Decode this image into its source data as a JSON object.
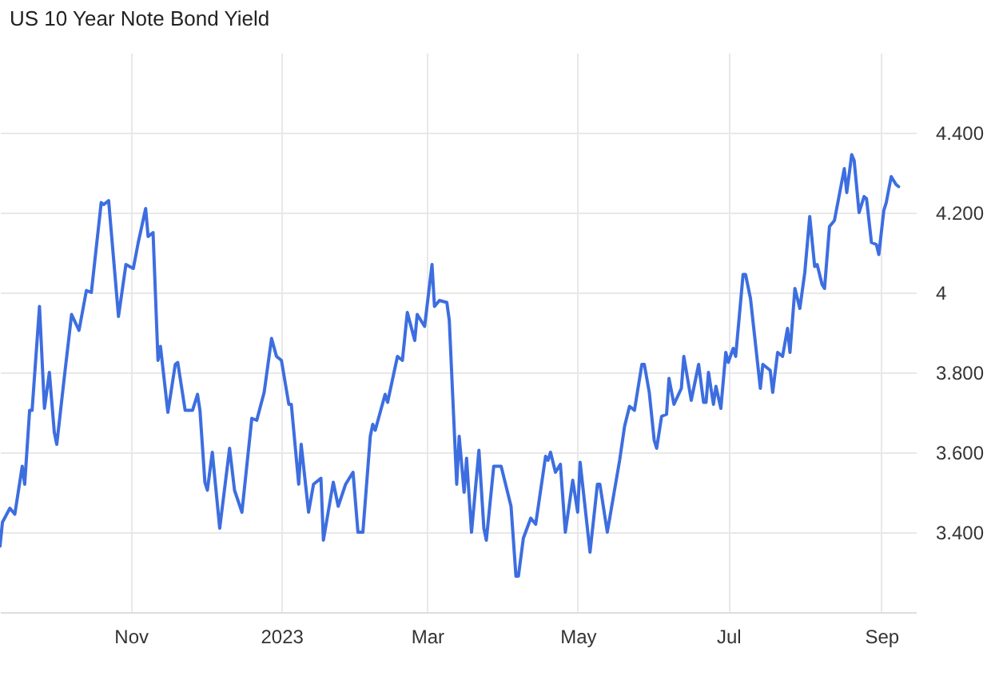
{
  "chart_data": {
    "type": "line",
    "title": "US 10 Year Note Bond Yield",
    "x": [
      "2022-09-09",
      "2022-09-10",
      "2022-09-13",
      "2022-09-15",
      "2022-09-18",
      "2022-09-19",
      "2022-09-21",
      "2022-09-22",
      "2022-09-25",
      "2022-09-27",
      "2022-09-29",
      "2022-10-01",
      "2022-10-02",
      "2022-10-05",
      "2022-10-08",
      "2022-10-11",
      "2022-10-14",
      "2022-10-16",
      "2022-10-20",
      "2022-10-21",
      "2022-10-23",
      "2022-10-27",
      "2022-10-30",
      "2022-11-02",
      "2022-11-04",
      "2022-11-07",
      "2022-11-08",
      "2022-11-10",
      "2022-11-12",
      "2022-11-13",
      "2022-11-16",
      "2022-11-19",
      "2022-11-20",
      "2022-11-23",
      "2022-11-26",
      "2022-11-28",
      "2022-11-29",
      "2022-12-01",
      "2022-12-02",
      "2022-12-04",
      "2022-12-07",
      "2022-12-11",
      "2022-12-13",
      "2022-12-16",
      "2022-12-20",
      "2022-12-22",
      "2022-12-25",
      "2022-12-28",
      "2022-12-30",
      "2023-01-01",
      "2023-01-04",
      "2023-01-05",
      "2023-01-08",
      "2023-01-09",
      "2023-01-12",
      "2023-01-14",
      "2023-01-17",
      "2023-01-18",
      "2023-01-22",
      "2023-01-24",
      "2023-01-27",
      "2023-01-30",
      "2023-02-01",
      "2023-02-03",
      "2023-02-06",
      "2023-02-07",
      "2023-02-08",
      "2023-02-12",
      "2023-02-13",
      "2023-02-17",
      "2023-02-19",
      "2023-02-21",
      "2023-02-24",
      "2023-02-25",
      "2023-02-28",
      "2023-03-03",
      "2023-03-04",
      "2023-03-06",
      "2023-03-09",
      "2023-03-10",
      "2023-03-13",
      "2023-03-14",
      "2023-03-16",
      "2023-03-17",
      "2023-03-19",
      "2023-03-22",
      "2023-03-24",
      "2023-03-25",
      "2023-03-28",
      "2023-03-31",
      "2023-04-04",
      "2023-04-06",
      "2023-04-07",
      "2023-04-09",
      "2023-04-12",
      "2023-04-14",
      "2023-04-18",
      "2023-04-19",
      "2023-04-20",
      "2023-04-22",
      "2023-04-24",
      "2023-04-26",
      "2023-04-29",
      "2023-05-01",
      "2023-05-02",
      "2023-05-06",
      "2023-05-09",
      "2023-05-10",
      "2023-05-13",
      "2023-05-18",
      "2023-05-20",
      "2023-05-22",
      "2023-05-24",
      "2023-05-27",
      "2023-05-28",
      "2023-05-30",
      "2023-06-01",
      "2023-06-02",
      "2023-06-04",
      "2023-06-06",
      "2023-06-07",
      "2023-06-09",
      "2023-06-12",
      "2023-06-13",
      "2023-06-16",
      "2023-06-19",
      "2023-06-21",
      "2023-06-22",
      "2023-06-23",
      "2023-06-25",
      "2023-06-26",
      "2023-06-28",
      "2023-06-30",
      "2023-07-01",
      "2023-07-03",
      "2023-07-04",
      "2023-07-07",
      "2023-07-08",
      "2023-07-10",
      "2023-07-14",
      "2023-07-15",
      "2023-07-18",
      "2023-07-19",
      "2023-07-21",
      "2023-07-23",
      "2023-07-25",
      "2023-07-26",
      "2023-07-28",
      "2023-07-30",
      "2023-08-01",
      "2023-08-03",
      "2023-08-05",
      "2023-08-06",
      "2023-08-08",
      "2023-08-09",
      "2023-08-11",
      "2023-08-13",
      "2023-08-17",
      "2023-08-18",
      "2023-08-20",
      "2023-08-21",
      "2023-08-23",
      "2023-08-25",
      "2023-08-26",
      "2023-08-28",
      "2023-08-30",
      "2023-08-31",
      "2023-09-02",
      "2023-09-03",
      "2023-09-05",
      "2023-09-07",
      "2023-09-08"
    ],
    "series": [
      {
        "color": "#3d6ee0",
        "values": [
          3.365,
          3.425,
          3.46,
          3.445,
          3.565,
          3.52,
          3.705,
          3.705,
          3.965,
          3.71,
          3.8,
          3.65,
          3.62,
          3.785,
          3.945,
          3.905,
          4.005,
          4.0,
          4.225,
          4.22,
          4.23,
          3.94,
          4.07,
          4.06,
          4.125,
          4.21,
          4.14,
          4.15,
          3.83,
          3.865,
          3.7,
          3.82,
          3.825,
          3.705,
          3.705,
          3.745,
          3.705,
          3.525,
          3.505,
          3.6,
          3.41,
          3.61,
          3.505,
          3.45,
          3.685,
          3.68,
          3.75,
          3.885,
          3.84,
          3.83,
          3.72,
          3.72,
          3.52,
          3.62,
          3.45,
          3.52,
          3.535,
          3.38,
          3.525,
          3.465,
          3.52,
          3.55,
          3.4,
          3.4,
          3.64,
          3.67,
          3.655,
          3.745,
          3.725,
          3.84,
          3.83,
          3.95,
          3.88,
          3.945,
          3.915,
          4.07,
          3.965,
          3.98,
          3.975,
          3.93,
          3.52,
          3.64,
          3.5,
          3.585,
          3.4,
          3.605,
          3.41,
          3.38,
          3.565,
          3.565,
          3.465,
          3.29,
          3.29,
          3.385,
          3.435,
          3.42,
          3.59,
          3.58,
          3.6,
          3.55,
          3.57,
          3.4,
          3.53,
          3.45,
          3.575,
          3.35,
          3.52,
          3.52,
          3.4,
          3.58,
          3.665,
          3.715,
          3.705,
          3.82,
          3.82,
          3.75,
          3.63,
          3.61,
          3.69,
          3.695,
          3.785,
          3.72,
          3.76,
          3.84,
          3.73,
          3.82,
          3.725,
          3.725,
          3.8,
          3.72,
          3.765,
          3.71,
          3.85,
          3.825,
          3.86,
          3.84,
          4.045,
          4.045,
          3.985,
          3.76,
          3.82,
          3.805,
          3.75,
          3.85,
          3.84,
          3.91,
          3.85,
          4.01,
          3.96,
          4.05,
          4.19,
          4.065,
          4.07,
          4.02,
          4.01,
          4.165,
          4.18,
          4.31,
          4.25,
          4.345,
          4.33,
          4.2,
          4.24,
          4.235,
          4.125,
          4.12,
          4.095,
          4.205,
          4.225,
          4.29,
          4.27,
          4.265
        ]
      }
    ],
    "xlim": [
      "2022-09-09",
      "2023-09-15"
    ],
    "xticks": [
      {
        "value": "2022-11-01",
        "label": "Nov"
      },
      {
        "value": "2023-01-01",
        "label": "2023"
      },
      {
        "value": "2023-03-01",
        "label": "Mar"
      },
      {
        "value": "2023-05-01",
        "label": "May"
      },
      {
        "value": "2023-07-01",
        "label": "Jul"
      },
      {
        "value": "2023-09-01",
        "label": "Sep"
      }
    ],
    "ylim": [
      3.2,
      4.6
    ],
    "yticks": [
      {
        "value": 3.4,
        "label": "3.400"
      },
      {
        "value": 3.6,
        "label": "3.600"
      },
      {
        "value": 3.8,
        "label": "3.800"
      },
      {
        "value": 4,
        "label": "4"
      },
      {
        "value": 4.2,
        "label": "4.200"
      },
      {
        "value": 4.4,
        "label": "4.400"
      }
    ],
    "grid": true
  }
}
